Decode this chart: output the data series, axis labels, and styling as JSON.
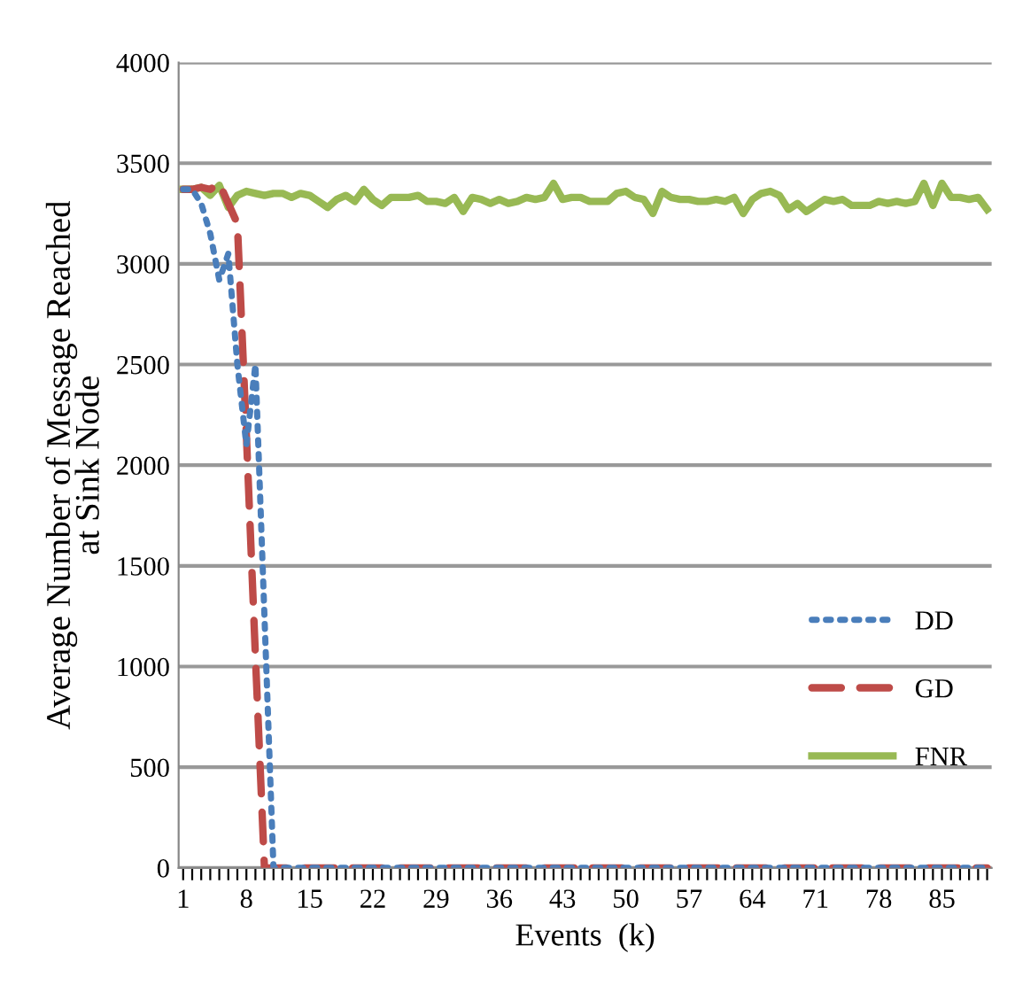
{
  "chart_data": {
    "type": "line",
    "xlabel": "Events  (k)",
    "ylabel": "Average Number of Message Reached\nat Sink Node",
    "categories": [
      "1",
      null,
      null,
      null,
      null,
      null,
      null,
      "8",
      null,
      null,
      null,
      null,
      null,
      null,
      "15",
      null,
      null,
      null,
      null,
      null,
      null,
      "22",
      null,
      null,
      null,
      null,
      null,
      null,
      "29",
      null,
      null,
      null,
      null,
      null,
      null,
      "36",
      null,
      null,
      null,
      null,
      null,
      null,
      "43",
      null,
      null,
      null,
      null,
      null,
      null,
      "50",
      null,
      null,
      null,
      null,
      null,
      null,
      "57",
      null,
      null,
      null,
      null,
      null,
      null,
      "64",
      null,
      null,
      null,
      null,
      null,
      null,
      "71",
      null,
      null,
      null,
      null,
      null,
      null,
      "78",
      null,
      null,
      null,
      null,
      null,
      null,
      "85",
      null,
      null,
      null,
      null,
      null
    ],
    "series": [
      {
        "name": "DD",
        "color": "#4a7ebb",
        "line_style": "dotted",
        "values": [
          3370,
          3370,
          3300,
          3150,
          2920,
          3050,
          2500,
          2100,
          2500,
          1250,
          0,
          0,
          0,
          0,
          0,
          0,
          0,
          0,
          0,
          0,
          0,
          0,
          0,
          0,
          0,
          0,
          0,
          0,
          0,
          0,
          0,
          0,
          0,
          0,
          0,
          0,
          0,
          0,
          0,
          0,
          0,
          0,
          0,
          0,
          0,
          0,
          0,
          0,
          0,
          0,
          0,
          0,
          0,
          0,
          0,
          0,
          0,
          0,
          0,
          0,
          0,
          0,
          0,
          0,
          0,
          0,
          0,
          0,
          0,
          0,
          0,
          0,
          0,
          0,
          0,
          0,
          0,
          0,
          0,
          0,
          0,
          0,
          0,
          0,
          0,
          0,
          0,
          0,
          0,
          0
        ]
      },
      {
        "name": "GD",
        "color": "#be4b48",
        "line_style": "dashed",
        "values": [
          3370,
          3370,
          3380,
          3370,
          3400,
          3300,
          3200,
          2150,
          1050,
          0,
          0,
          0,
          0,
          0,
          0,
          0,
          0,
          0,
          0,
          0,
          0,
          0,
          0,
          0,
          0,
          0,
          0,
          0,
          0,
          0,
          0,
          0,
          0,
          0,
          0,
          0,
          0,
          0,
          0,
          0,
          0,
          0,
          0,
          0,
          0,
          0,
          0,
          0,
          0,
          0,
          0,
          0,
          0,
          0,
          0,
          0,
          0,
          0,
          0,
          0,
          0,
          0,
          0,
          0,
          0,
          0,
          0,
          0,
          0,
          0,
          0,
          0,
          0,
          0,
          0,
          0,
          0,
          0,
          0,
          0,
          0,
          0,
          0,
          0,
          0,
          0,
          0,
          0,
          0,
          0
        ]
      },
      {
        "name": "FNR",
        "color": "#98b954",
        "line_style": "solid",
        "values": [
          3370,
          3370,
          3380,
          3340,
          3390,
          3280,
          3340,
          3360,
          3350,
          3340,
          3350,
          3350,
          3330,
          3350,
          3340,
          3310,
          3280,
          3320,
          3340,
          3310,
          3370,
          3320,
          3290,
          3330,
          3330,
          3330,
          3340,
          3310,
          3310,
          3300,
          3330,
          3260,
          3330,
          3320,
          3300,
          3320,
          3300,
          3310,
          3330,
          3320,
          3330,
          3400,
          3320,
          3330,
          3330,
          3310,
          3310,
          3310,
          3350,
          3360,
          3330,
          3320,
          3250,
          3360,
          3330,
          3320,
          3320,
          3310,
          3310,
          3320,
          3310,
          3330,
          3250,
          3320,
          3350,
          3360,
          3340,
          3270,
          3300,
          3260,
          3290,
          3320,
          3310,
          3320,
          3290,
          3290,
          3290,
          3310,
          3300,
          3310,
          3300,
          3310,
          3400,
          3290,
          3400,
          3330,
          3330,
          3320,
          3330,
          3270
        ]
      }
    ],
    "ylim": [
      0,
      4000
    ],
    "yticks": [
      0,
      500,
      1000,
      1500,
      2000,
      2500,
      3000,
      3500,
      4000
    ],
    "grid": "y",
    "legend": "right",
    "marker": "none"
  }
}
